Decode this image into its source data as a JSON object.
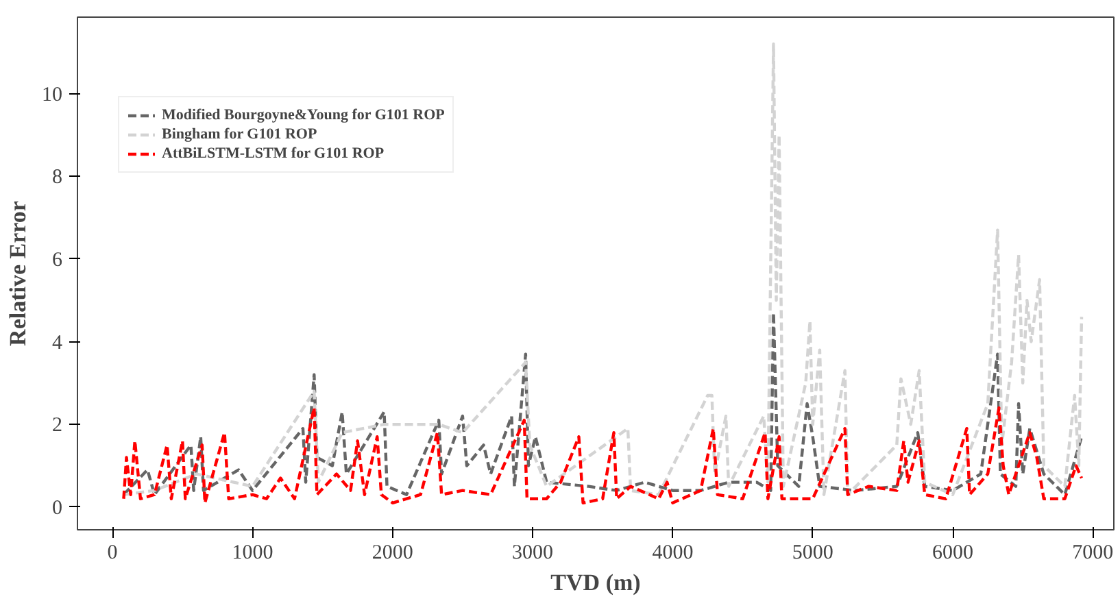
{
  "chart_data": {
    "type": "line",
    "xlabel": "TVD (m)",
    "ylabel": "Relative Error",
    "xlim": [
      -250,
      7150
    ],
    "ylim": [
      -0.55,
      11.85
    ],
    "xticks": [
      0,
      1000,
      2000,
      3000,
      4000,
      5000,
      6000,
      7000
    ],
    "yticks": [
      0,
      2,
      4,
      6,
      8,
      10
    ],
    "grid": false,
    "legend": "top left",
    "line_style": "dashed",
    "marker": "none",
    "series": [
      {
        "name": "Modified Bourgoyne&Young for G101 ROP",
        "color": "#666666",
        "x": [
          80,
          250,
          300,
          560,
          580,
          630,
          650,
          900,
          1000,
          1360,
          1380,
          1440,
          1460,
          1570,
          1640,
          1670,
          1940,
          1960,
          2100,
          2330,
          2350,
          2500,
          2530,
          2650,
          2700,
          2850,
          2870,
          2950,
          2970,
          3020,
          3100,
          3400,
          3600,
          3800,
          4000,
          4200,
          4400,
          4600,
          4700,
          4720,
          4750,
          4900,
          4960,
          5000,
          5050,
          5300,
          5600,
          5750,
          5800,
          6000,
          6200,
          6320,
          6340,
          6450,
          6470,
          6500,
          6550,
          6650,
          6800,
          6920
        ],
        "values": [
          0.3,
          0.9,
          0.3,
          1.5,
          0.4,
          1.7,
          0.4,
          0.9,
          0.4,
          1.9,
          0.6,
          3.2,
          1.2,
          1.0,
          2.3,
          0.8,
          2.3,
          0.5,
          0.3,
          2.1,
          0.8,
          2.2,
          1.0,
          1.5,
          0.8,
          2.2,
          0.5,
          3.7,
          1.0,
          1.7,
          0.6,
          0.5,
          0.4,
          0.6,
          0.4,
          0.4,
          0.6,
          0.6,
          0.4,
          4.7,
          1.0,
          0.5,
          2.5,
          1.7,
          0.5,
          0.4,
          0.5,
          1.8,
          0.5,
          0.4,
          0.8,
          3.7,
          0.8,
          0.5,
          2.5,
          0.8,
          1.9,
          0.8,
          0.3,
          1.7
        ]
      },
      {
        "name": "Bingham for G101 ROP",
        "color": "#d3d3d3",
        "x": [
          80,
          300,
          600,
          1000,
          1440,
          1470,
          1640,
          1940,
          2330,
          2500,
          2950,
          2980,
          3100,
          3680,
          3700,
          3900,
          4250,
          4280,
          4300,
          4380,
          4400,
          4650,
          4680,
          4720,
          4740,
          4760,
          4790,
          4950,
          4980,
          5000,
          5050,
          5080,
          5230,
          5250,
          5600,
          5630,
          5700,
          5760,
          5800,
          6000,
          6250,
          6320,
          6350,
          6420,
          6470,
          6500,
          6530,
          6560,
          6620,
          6650,
          6800,
          6870,
          6900,
          6920
        ],
        "values": [
          0.3,
          0.4,
          0.8,
          0.5,
          2.8,
          0.6,
          1.8,
          2.0,
          2.0,
          1.8,
          3.5,
          1.5,
          0.5,
          1.9,
          0.4,
          0.3,
          2.7,
          2.7,
          0.8,
          2.2,
          0.5,
          2.2,
          0.6,
          11.2,
          5.0,
          9.0,
          0.5,
          3.0,
          4.5,
          2.0,
          3.8,
          0.3,
          3.3,
          0.3,
          1.5,
          3.1,
          2.0,
          3.3,
          0.6,
          0.3,
          2.5,
          6.7,
          1.5,
          3.5,
          6.1,
          3.0,
          5.0,
          4.0,
          5.5,
          1.0,
          0.5,
          2.7,
          1.0,
          4.6
        ]
      },
      {
        "name": "AttBiLSTM-LSTM for G101 ROP",
        "color": "#ff0000",
        "x": [
          80,
          100,
          130,
          160,
          200,
          300,
          390,
          420,
          500,
          520,
          640,
          660,
          800,
          830,
          1000,
          1100,
          1200,
          1300,
          1440,
          1460,
          1600,
          1700,
          1750,
          1800,
          1890,
          1920,
          2000,
          2200,
          2320,
          2350,
          2500,
          2700,
          2940,
          2960,
          3100,
          3200,
          3330,
          3360,
          3500,
          3580,
          3600,
          3700,
          3900,
          3960,
          4000,
          4200,
          4290,
          4320,
          4500,
          4660,
          4680,
          4760,
          4780,
          5000,
          5230,
          5250,
          5400,
          5600,
          5650,
          5680,
          5760,
          5800,
          5950,
          6100,
          6120,
          6250,
          6330,
          6360,
          6400,
          6500,
          6550,
          6600,
          6650,
          6800,
          6880,
          6920
        ],
        "values": [
          0.2,
          1.2,
          0.3,
          1.6,
          0.2,
          0.3,
          1.5,
          0.2,
          1.6,
          0.2,
          1.5,
          0.1,
          1.8,
          0.2,
          0.3,
          0.2,
          0.7,
          0.2,
          2.4,
          0.3,
          0.8,
          0.4,
          1.6,
          0.3,
          1.7,
          0.3,
          0.1,
          0.3,
          1.8,
          0.3,
          0.4,
          0.3,
          2.1,
          0.2,
          0.2,
          0.6,
          1.7,
          0.1,
          0.2,
          1.8,
          0.2,
          0.5,
          0.2,
          0.6,
          0.1,
          0.4,
          1.9,
          0.3,
          0.2,
          1.8,
          0.2,
          1.7,
          0.2,
          0.2,
          1.9,
          0.3,
          0.5,
          0.4,
          1.6,
          0.6,
          1.6,
          0.3,
          0.2,
          1.9,
          0.3,
          0.8,
          2.4,
          1.0,
          0.3,
          1.3,
          1.8,
          1.2,
          0.2,
          0.2,
          1.0,
          0.7
        ]
      }
    ]
  }
}
